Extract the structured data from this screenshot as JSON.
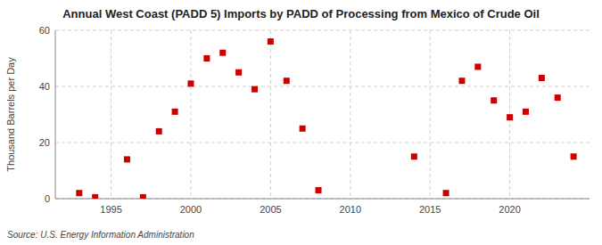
{
  "chart_data": {
    "type": "scatter",
    "title": "Annual West Coast (PADD 5) Imports by PADD of Processing from Mexico of Crude Oil",
    "ylabel": "Thousand Barrels per Day",
    "source": "Source: U.S. Energy Information Administration",
    "x": [
      1993,
      1994,
      1996,
      1997,
      1998,
      1999,
      2000,
      2001,
      2002,
      2003,
      2004,
      2005,
      2006,
      2007,
      2008,
      2014,
      2016,
      2017,
      2018,
      2019,
      2020,
      2021,
      2022,
      2023,
      2024
    ],
    "values": [
      2,
      0.5,
      14,
      0.5,
      24,
      31,
      41,
      50,
      52,
      45,
      39,
      56,
      42,
      25,
      3,
      15,
      2,
      42,
      47,
      35,
      29,
      31,
      43,
      36,
      15
    ],
    "color": "#cc0000",
    "marker": "square",
    "xlim": [
      1991.5,
      2025
    ],
    "xticks": [
      1995,
      2000,
      2005,
      2010,
      2015,
      2020
    ],
    "ylim": [
      0,
      60
    ],
    "yticks": [
      0,
      20,
      40,
      60
    ],
    "grid": true
  }
}
